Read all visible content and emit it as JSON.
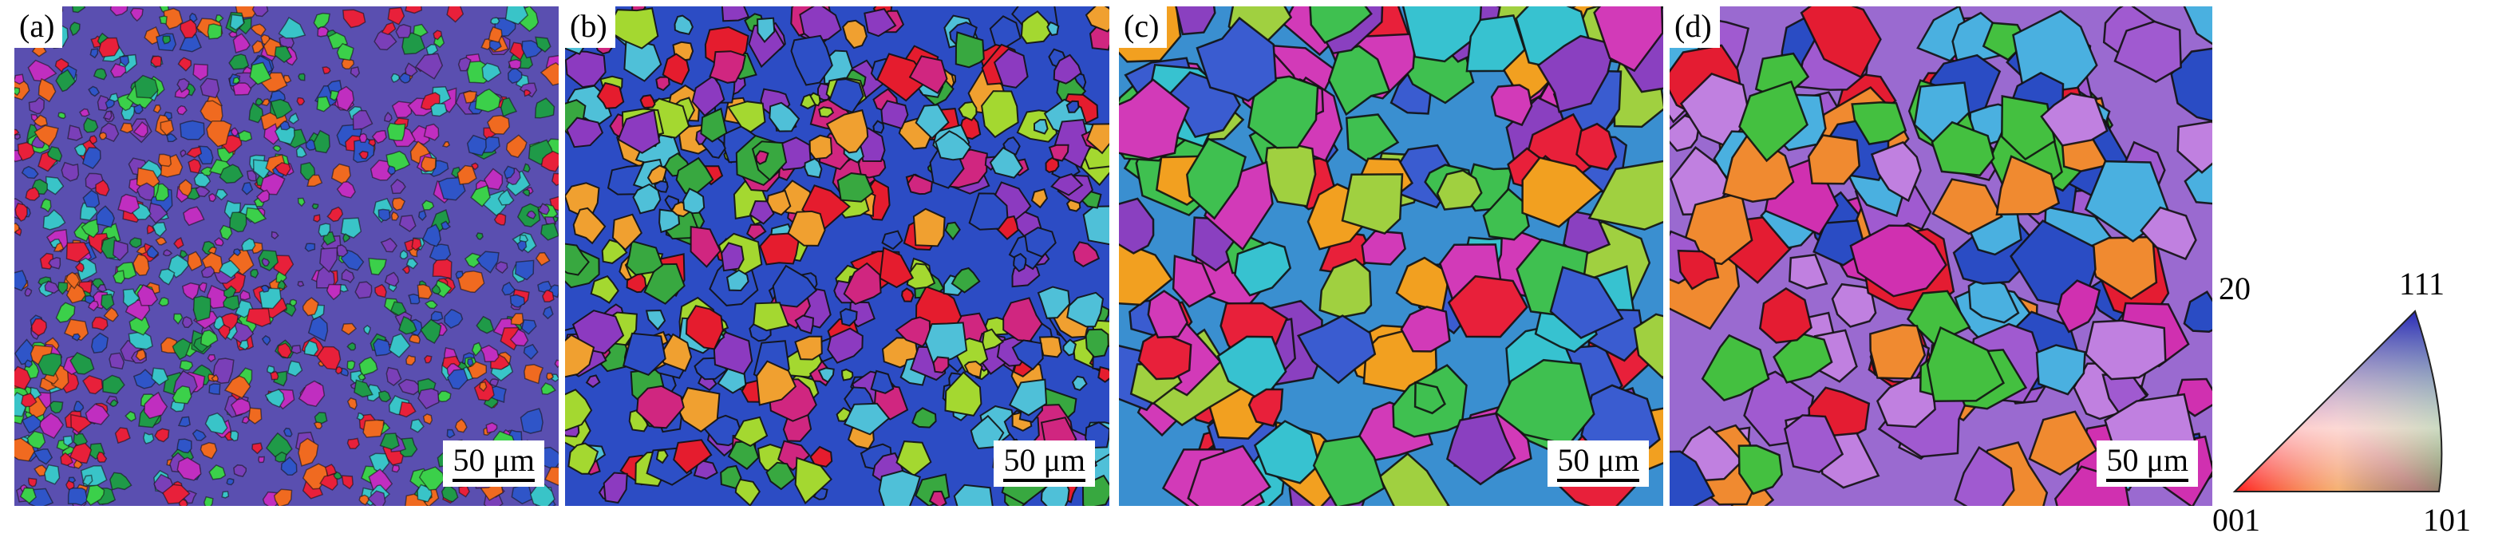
{
  "panels": [
    {
      "label": "(a)",
      "scale": "50 μm",
      "bg": "#5a4fb0",
      "palette": [
        "#e8203a",
        "#2f55c8",
        "#7a3fb8",
        "#1f9a48",
        "#39c4c8",
        "#c02ec0",
        "#f06a20",
        "#3bd04a"
      ],
      "grain": "fine"
    },
    {
      "label": "(b)",
      "scale": "50 μm",
      "bg": "#2c4cc4",
      "palette": [
        "#e51c2e",
        "#2d4fc6",
        "#8c3ac0",
        "#38a840",
        "#f0a030",
        "#d02680",
        "#4fc0d8",
        "#a4d830"
      ],
      "grain": "medium"
    },
    {
      "label": "(c)",
      "scale": "50 μm",
      "bg": "#3a8fd0",
      "palette": [
        "#e8203a",
        "#3a5cd0",
        "#d23ab8",
        "#3fc050",
        "#37c2d0",
        "#f2a020",
        "#8a40c0",
        "#a0d040"
      ],
      "grain": "coarse"
    },
    {
      "label": "(d)",
      "scale": "50 μm",
      "bg": "#9a6ad0",
      "palette": [
        "#e41c32",
        "#2a4cc4",
        "#a05ad0",
        "#44c040",
        "#d030b0",
        "#4ab0e0",
        "#f08a30",
        "#c080e0"
      ],
      "grain": "coarse"
    }
  ],
  "legend": {
    "label_top_left": "20",
    "corners": {
      "c001": "001",
      "c101": "101",
      "c111": "111"
    },
    "colors": {
      "c001": "#ff1a1a",
      "c101": "#22c21a",
      "c111": "#2a2ab8"
    }
  }
}
